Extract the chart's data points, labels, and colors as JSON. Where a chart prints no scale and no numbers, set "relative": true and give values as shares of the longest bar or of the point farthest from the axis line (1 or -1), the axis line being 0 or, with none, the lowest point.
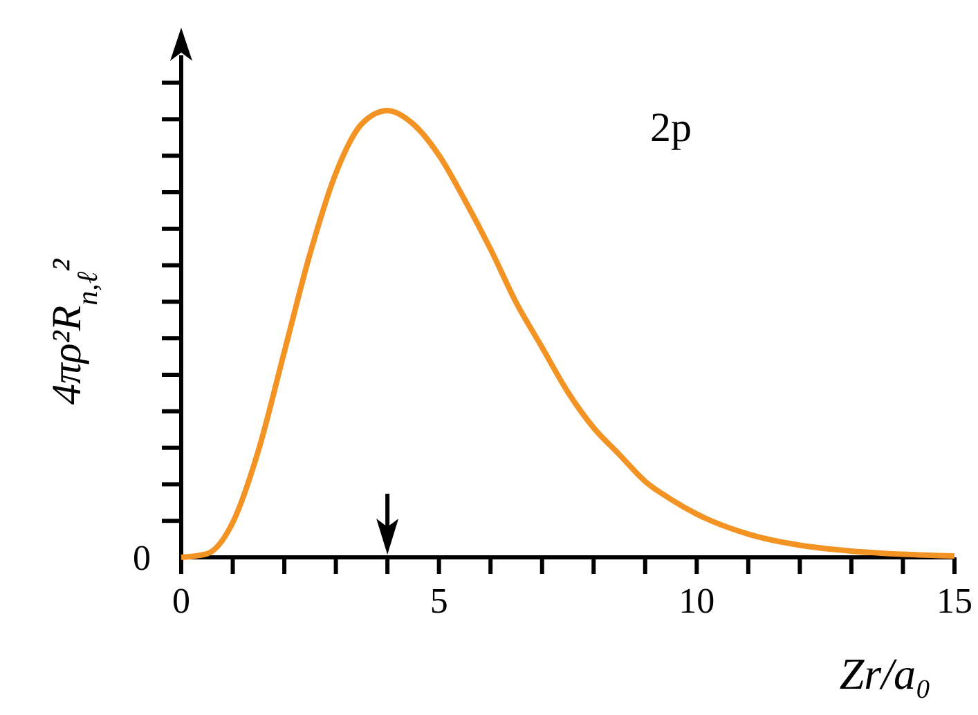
{
  "chart_data": {
    "type": "line",
    "xlabel": "Zr/a₀",
    "ylabel": "4πρ²R$_{n,ℓ}$²",
    "relative": true,
    "x": [
      0,
      0.5,
      1,
      1.5,
      2,
      2.5,
      3,
      3.5,
      4,
      4.5,
      5,
      5.5,
      6,
      6.5,
      7,
      7.5,
      8,
      8.5,
      9,
      9.5,
      10,
      11,
      12,
      13,
      14,
      15
    ],
    "series": [
      {
        "name": "2p",
        "color": "#f39323",
        "values": [
          0,
          0.008,
          0.078,
          0.24,
          0.46,
          0.68,
          0.86,
          0.97,
          1,
          0.97,
          0.9,
          0.8,
          0.69,
          0.57,
          0.47,
          0.37,
          0.29,
          0.23,
          0.17,
          0.13,
          0.097,
          0.052,
          0.027,
          0.014,
          0.007,
          0.003
        ]
      }
    ],
    "xlim": [
      0,
      15
    ],
    "xticks": [
      0,
      {
        "value": 1,
        "label": null
      },
      {
        "value": 2,
        "label": null
      },
      {
        "value": 3,
        "label": null
      },
      {
        "value": 4,
        "label": null
      },
      5,
      {
        "value": 6,
        "label": null
      },
      {
        "value": 7,
        "label": null
      },
      {
        "value": 8,
        "label": null
      },
      {
        "value": 9,
        "label": null
      },
      10,
      {
        "value": 11,
        "label": null
      },
      {
        "value": 12,
        "label": null
      },
      {
        "value": 13,
        "label": null
      },
      {
        "value": 14,
        "label": null
      },
      15
    ],
    "annotations": [
      "0"
    ],
    "marker": "none",
    "line_style": "solid"
  }
}
